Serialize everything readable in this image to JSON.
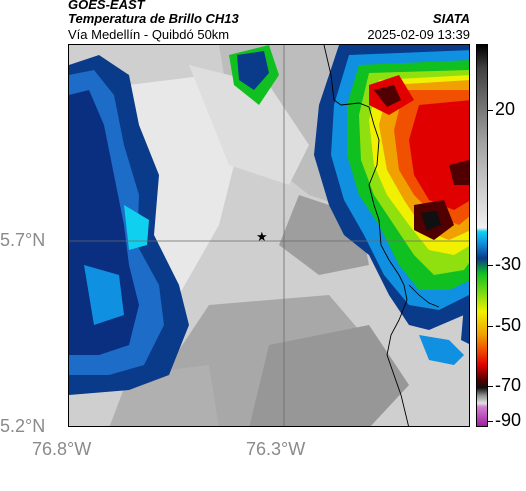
{
  "header": {
    "satellite": "GOES-EAST",
    "product": "Temperatura de Brillo CH13",
    "route": "Vía Medellín - Quibdó 50km",
    "org": "SIATA",
    "datetime": "2025-02-09 13:39"
  },
  "axes": {
    "y_ticks": [
      "5.7°N",
      "5.2°N"
    ],
    "x_ticks": [
      "76.8°W",
      "76.3°W"
    ]
  },
  "colorbar": {
    "ticks": [
      "20",
      "-30",
      "-50",
      "-70",
      "-90"
    ],
    "colors": [
      "#f0f0f0",
      "#c8c8c8",
      "#a0a0a0",
      "#0a3a8a",
      "#1090e0",
      "#10d0f0",
      "#10c020",
      "#90e010",
      "#f0f000",
      "#f0a000",
      "#f05000",
      "#e00000",
      "#500000",
      "#101010",
      "#d040d0"
    ]
  },
  "map": {
    "marker": "star",
    "marker_label": "★"
  }
}
